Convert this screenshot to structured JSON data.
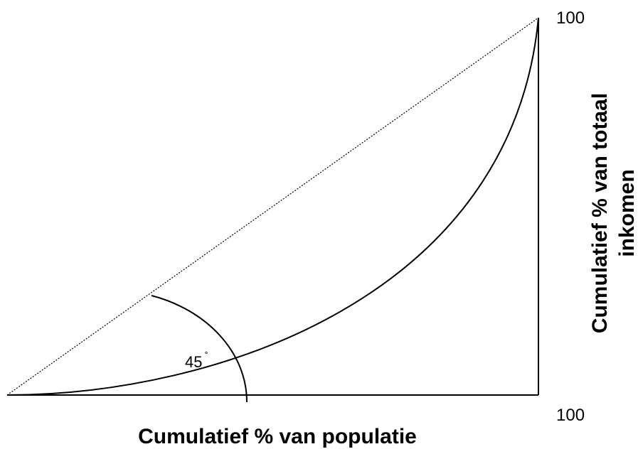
{
  "labels": {
    "y_top": "100",
    "x_right": "100",
    "angle": "45",
    "degree": "˚",
    "x_axis": "Cumulatief % van populatie",
    "y_axis": [
      "Cumulatief % van totaal",
      "inkomen"
    ]
  }
}
